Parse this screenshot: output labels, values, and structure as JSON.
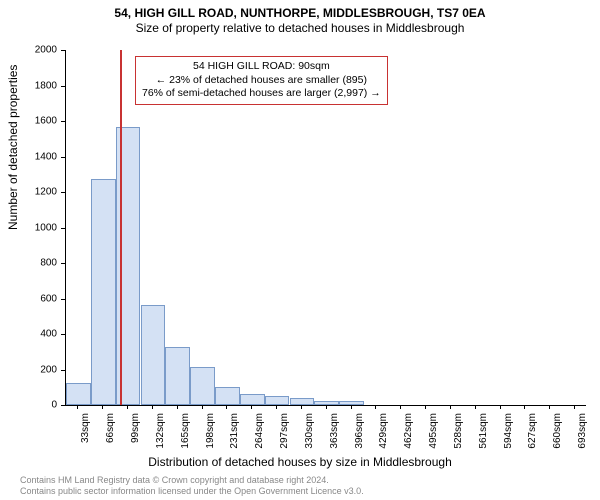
{
  "title": "54, HIGH GILL ROAD, NUNTHORPE, MIDDLESBROUGH, TS7 0EA",
  "subtitle": "Size of property relative to detached houses in Middlesbrough",
  "ylabel": "Number of detached properties",
  "xlabel": "Distribution of detached houses by size in Middlesbrough",
  "chart": {
    "type": "histogram",
    "ylim": [
      0,
      2000
    ],
    "ytick_step": 200,
    "xlim_sqm": [
      16.5,
      707.5
    ],
    "xtick_start": 33,
    "xtick_step": 33,
    "xtick_count": 21,
    "bar_color": "#d4e1f4",
    "bar_border_color": "#7a9bc9",
    "background_color": "#ffffff",
    "bin_width_sqm": 33,
    "values": [
      125,
      1275,
      1565,
      563,
      325,
      213,
      100,
      63,
      50,
      38,
      25,
      25,
      0,
      0,
      0,
      0,
      0,
      0,
      0,
      0,
      0
    ],
    "marker_sqm": 90,
    "marker_color": "#c83232"
  },
  "annotation": {
    "line1": "54 HIGH GILL ROAD: 90sqm",
    "line2": "← 23% of detached houses are smaller (895)",
    "line3": "76% of semi-detached houses are larger (2,997) →",
    "border_color": "#c83232",
    "fontsize": 10.5
  },
  "footer": {
    "line1": "Contains HM Land Registry data © Crown copyright and database right 2024.",
    "line2": "Contains public sector information licensed under the Open Government Licence v3.0."
  }
}
